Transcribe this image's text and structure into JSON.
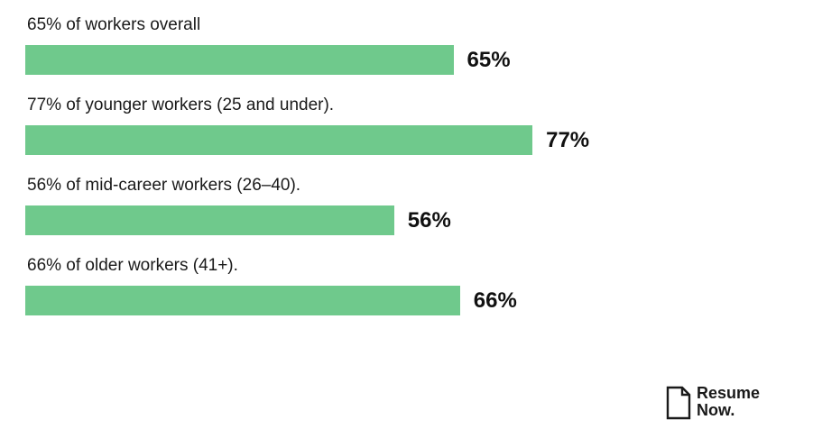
{
  "chart_data": {
    "type": "bar",
    "orientation": "horizontal",
    "categories": [
      "65% of workers overall",
      "77% of younger workers (25 and under).",
      "56% of mid-career workers (26–40).",
      "66% of older workers (41+)."
    ],
    "values": [
      65,
      77,
      56,
      66
    ],
    "value_labels": [
      "65%",
      "77%",
      "56%",
      "66%"
    ],
    "bar_color": "#6fc98c",
    "xlim": [
      0,
      100
    ],
    "grid": false,
    "legend": "none"
  },
  "brand": {
    "line1": "Resume",
    "line2": "Now.",
    "icon": "document-icon"
  }
}
